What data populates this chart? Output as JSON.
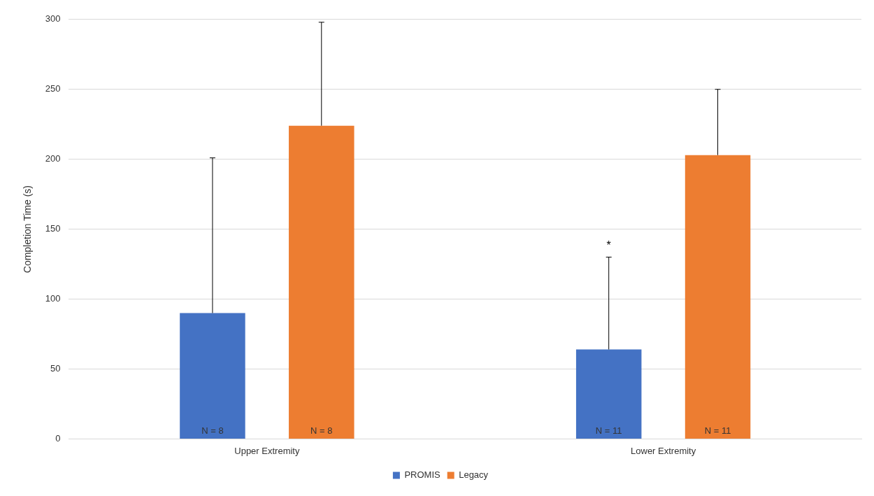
{
  "chart_data": {
    "type": "bar",
    "ylabel": "Completion Time (s)",
    "categories": [
      "Upper Extremity",
      "Lower Extremity"
    ],
    "series": [
      {
        "name": "PROMIS",
        "color": "#4472c4",
        "values": [
          90,
          64
        ],
        "errors": [
          [
            90,
            201
          ],
          [
            64,
            130
          ]
        ]
      },
      {
        "name": "Legacy",
        "color": "#ed7d31",
        "values": [
          224,
          203
        ],
        "errors": [
          [
            224,
            298
          ],
          [
            203,
            250
          ]
        ]
      }
    ],
    "ylim": [
      0,
      300
    ],
    "yticks": [
      0,
      50,
      100,
      150,
      200,
      250,
      300
    ],
    "grid": "y",
    "legend": "bottom",
    "annotations": [
      "N = 8",
      "N = 8",
      "N = 11",
      "N = 11",
      "*"
    ]
  }
}
